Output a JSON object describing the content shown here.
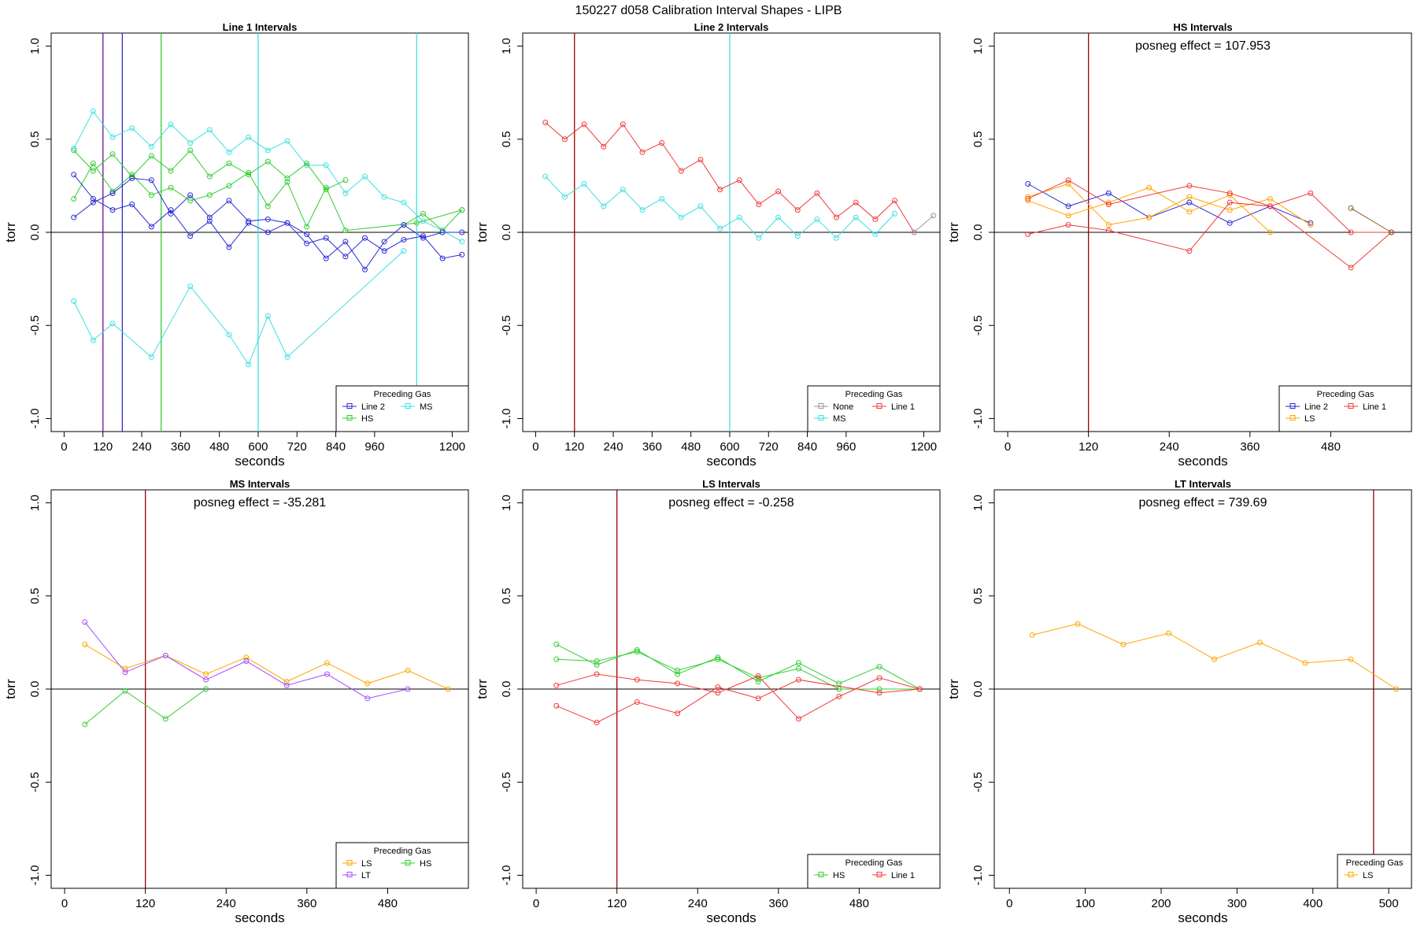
{
  "figure": {
    "title": "150227   d058   Calibration Interval Shapes - LIPB"
  },
  "chart_data": [
    {
      "type": "line",
      "title": "Line 1 Intervals",
      "xlabel": "seconds",
      "ylabel": "torr",
      "xlim": [
        -40,
        1250
      ],
      "ylim": [
        -1.07,
        1.07
      ],
      "xticks": [
        0,
        120,
        240,
        360,
        480,
        600,
        720,
        840,
        960,
        1200
      ],
      "yticks": [
        -1.0,
        -0.5,
        0.0,
        0.5,
        1.0
      ],
      "ytick_labels": [
        "-1.0",
        "-0.5",
        "0.0",
        "0.5",
        "1.0"
      ],
      "hline": 0,
      "vlines": [
        {
          "x": 120,
          "color": "#9a0000"
        },
        {
          "x": 120,
          "color": "#7e2bb5"
        },
        {
          "x": 180,
          "color": "#2a2ad8"
        },
        {
          "x": 300,
          "color": "#33cc33"
        },
        {
          "x": 600,
          "color": "#3fe0e0"
        },
        {
          "x": 1090,
          "color": "#3fe0e0"
        }
      ],
      "annotation": "",
      "legend": {
        "title": "Preceding Gas",
        "placement": "bottom-right",
        "columns": 2,
        "entries": [
          {
            "label": "Line 2",
            "color": "#2a2ad8"
          },
          {
            "label": "MS",
            "color": "#3fe0e0"
          },
          {
            "label": "HS",
            "color": "#33cc33"
          }
        ]
      },
      "series": [
        {
          "color": "#3fe0e0",
          "x": [
            30,
            90,
            150,
            210,
            270,
            330,
            390,
            450,
            510,
            570,
            630,
            690,
            750,
            810,
            870,
            930,
            990,
            1050,
            1110,
            1170,
            1230
          ],
          "y": [
            0.45,
            0.65,
            0.51,
            0.56,
            0.46,
            0.58,
            0.48,
            0.55,
            0.43,
            0.51,
            0.44,
            0.49,
            0.36,
            0.36,
            0.21,
            0.3,
            0.19,
            0.16,
            0.06,
            0.01,
            -0.05
          ]
        },
        {
          "color": "#3fe0e0",
          "x": [
            30,
            90,
            150,
            270,
            390,
            510,
            570,
            630,
            690,
            1050
          ],
          "y": [
            -0.37,
            -0.58,
            -0.49,
            -0.67,
            -0.29,
            -0.55,
            -0.71,
            -0.45,
            -0.67,
            -0.1
          ]
        },
        {
          "color": "#33cc33",
          "x": [
            30,
            90,
            150,
            210,
            270,
            330,
            390,
            450,
            510,
            570,
            630,
            690,
            750,
            810,
            870
          ],
          "y": [
            0.44,
            0.33,
            0.42,
            0.3,
            0.41,
            0.33,
            0.44,
            0.3,
            0.37,
            0.31,
            0.38,
            0.29,
            0.37,
            0.23,
            0.28
          ]
        },
        {
          "color": "#33cc33",
          "x": [
            30,
            90,
            150,
            210,
            270,
            330,
            390,
            450,
            510,
            570,
            630,
            690,
            750,
            810,
            870,
            1090,
            1230
          ],
          "y": [
            0.18,
            0.37,
            0.22,
            0.31,
            0.2,
            0.24,
            0.17,
            0.2,
            0.25,
            0.32,
            0.14,
            0.27,
            0.03,
            0.24,
            0.01,
            0.05,
            0.12
          ]
        },
        {
          "color": "#33cc33",
          "x": [
            1050,
            1110,
            1170,
            1230
          ],
          "y": [
            0.04,
            0.1,
            0.01,
            0.12
          ]
        },
        {
          "color": "#2a2ad8",
          "x": [
            30,
            90,
            150,
            210,
            270,
            330,
            390,
            450,
            510,
            570,
            630,
            690,
            750,
            810,
            870,
            930,
            990,
            1050,
            1110,
            1170,
            1230
          ],
          "y": [
            0.31,
            0.18,
            0.12,
            0.15,
            0.03,
            0.12,
            -0.02,
            0.06,
            -0.08,
            0.05,
            0.0,
            0.05,
            -0.06,
            -0.03,
            -0.13,
            -0.03,
            -0.1,
            -0.04,
            -0.02,
            -0.14,
            -0.12
          ]
        },
        {
          "color": "#2a2ad8",
          "x": [
            30,
            90,
            150,
            210,
            270,
            330,
            390,
            450,
            510,
            570,
            630,
            690,
            750,
            810,
            870,
            930,
            990,
            1050,
            1110,
            1170,
            1230
          ],
          "y": [
            0.08,
            0.16,
            0.21,
            0.29,
            0.28,
            0.1,
            0.2,
            0.08,
            0.17,
            0.06,
            0.07,
            0.05,
            -0.01,
            -0.14,
            -0.05,
            -0.2,
            -0.05,
            0.04,
            -0.03,
            0.0,
            0.0
          ]
        }
      ]
    },
    {
      "type": "line",
      "title": "Line 2 Intervals",
      "xlabel": "seconds",
      "ylabel": "torr",
      "xlim": [
        -40,
        1250
      ],
      "ylim": [
        -1.07,
        1.07
      ],
      "xticks": [
        0,
        120,
        240,
        360,
        480,
        600,
        720,
        840,
        960,
        1200
      ],
      "yticks": [
        -1.0,
        -0.5,
        0.0,
        0.5,
        1.0
      ],
      "ytick_labels": [
        "-1.0",
        "-0.5",
        "0.0",
        "0.5",
        "1.0"
      ],
      "hline": 0,
      "vlines": [
        {
          "x": 120,
          "color": "#9a0000"
        },
        {
          "x": 600,
          "color": "#3fe0e0"
        }
      ],
      "annotation": "",
      "legend": {
        "title": "Preceding Gas",
        "placement": "bottom-right",
        "columns": 2,
        "entries": [
          {
            "label": "None",
            "color": "#999999"
          },
          {
            "label": "Line 1",
            "color": "#f03a3a"
          },
          {
            "label": "MS",
            "color": "#3fe0e0"
          }
        ]
      },
      "series": [
        {
          "color": "#f03a3a",
          "x": [
            30,
            90,
            150,
            210,
            270,
            330,
            390,
            450,
            510,
            570,
            630,
            690,
            750,
            810,
            870,
            930,
            990,
            1050,
            1110,
            1170
          ],
          "y": [
            0.59,
            0.5,
            0.58,
            0.46,
            0.58,
            0.43,
            0.48,
            0.33,
            0.39,
            0.23,
            0.28,
            0.15,
            0.22,
            0.12,
            0.21,
            0.08,
            0.16,
            0.07,
            0.17,
            0.0
          ]
        },
        {
          "color": "#3fe0e0",
          "x": [
            30,
            90,
            150,
            210,
            270,
            330,
            390,
            450,
            510,
            570,
            630,
            690,
            750,
            810,
            870,
            930,
            990,
            1050,
            1110
          ],
          "y": [
            0.3,
            0.19,
            0.26,
            0.14,
            0.23,
            0.12,
            0.18,
            0.08,
            0.14,
            0.02,
            0.08,
            -0.03,
            0.08,
            -0.02,
            0.07,
            -0.03,
            0.08,
            -0.01,
            0.1
          ]
        },
        {
          "color": "#999999",
          "x": [
            1170,
            1230
          ],
          "y": [
            0.0,
            0.09
          ]
        }
      ]
    },
    {
      "type": "line",
      "title": "HS Intervals",
      "xlabel": "seconds",
      "ylabel": "torr",
      "xlim": [
        -20,
        600
      ],
      "ylim": [
        -1.07,
        1.07
      ],
      "xticks": [
        0,
        120,
        240,
        360,
        480
      ],
      "yticks": [
        -1.0,
        -0.5,
        0.0,
        0.5,
        1.0
      ],
      "ytick_labels": [
        "-1.0",
        "-0.5",
        "0.0",
        "0.5",
        "1.0"
      ],
      "hline": 0,
      "vlines": [
        {
          "x": 120,
          "color": "#9a0000"
        }
      ],
      "annotation": "posneg effect = 107.953",
      "legend": {
        "title": "Preceding Gas",
        "placement": "bottom-right",
        "columns": 2,
        "entries": [
          {
            "label": "Line 2",
            "color": "#2a2ad8"
          },
          {
            "label": "Line 1",
            "color": "#f03a3a"
          },
          {
            "label": "LS",
            "color": "#ffa500"
          }
        ]
      },
      "series": [
        {
          "color": "#2a2ad8",
          "x": [
            30,
            90,
            150,
            210,
            270,
            330,
            390,
            450
          ],
          "y": [
            0.26,
            0.14,
            0.21,
            0.08,
            0.16,
            0.05,
            0.14,
            0.05
          ]
        },
        {
          "color": "#ffa500",
          "x": [
            30,
            90,
            150,
            210,
            270,
            330,
            390
          ],
          "y": [
            0.17,
            0.09,
            0.16,
            0.24,
            0.11,
            0.2,
            0.0
          ]
        },
        {
          "color": "#ffa500",
          "x": [
            30,
            90,
            150,
            210,
            270,
            330,
            390,
            450
          ],
          "y": [
            0.19,
            0.26,
            0.04,
            0.08,
            0.19,
            0.12,
            0.18,
            0.04
          ]
        },
        {
          "color": "#f03a3a",
          "x": [
            30,
            90,
            150,
            270,
            330,
            390,
            450,
            510,
            570
          ],
          "y": [
            0.18,
            0.28,
            0.15,
            0.25,
            0.21,
            0.14,
            0.21,
            0.0,
            0.0
          ]
        },
        {
          "color": "#f03a3a",
          "x": [
            30,
            90,
            150,
            270,
            330,
            390,
            510,
            570
          ],
          "y": [
            -0.01,
            0.04,
            0.01,
            -0.1,
            0.16,
            0.14,
            -0.19,
            0.0
          ]
        },
        {
          "color": "#8a5a20",
          "x": [
            510,
            570
          ],
          "y": [
            0.13,
            0.0
          ]
        }
      ]
    },
    {
      "type": "line",
      "title": "MS Intervals",
      "xlabel": "seconds",
      "ylabel": "torr",
      "xlim": [
        -20,
        600
      ],
      "ylim": [
        -1.07,
        1.07
      ],
      "xticks": [
        0,
        120,
        240,
        360,
        480
      ],
      "yticks": [
        -1.0,
        -0.5,
        0.0,
        0.5,
        1.0
      ],
      "ytick_labels": [
        "-1.0",
        "-0.5",
        "0.0",
        "0.5",
        "1.0"
      ],
      "hline": 0,
      "vlines": [
        {
          "x": 120,
          "color": "#9a0000"
        }
      ],
      "annotation": "posneg effect = -35.281",
      "legend": {
        "title": "Preceding Gas",
        "placement": "bottom-right",
        "columns": 2,
        "entries": [
          {
            "label": "LS",
            "color": "#ffa500"
          },
          {
            "label": "HS",
            "color": "#33cc33"
          },
          {
            "label": "LT",
            "color": "#a64dff"
          }
        ]
      },
      "series": [
        {
          "color": "#ffa500",
          "x": [
            30,
            90,
            150,
            210,
            270,
            330,
            390,
            450,
            510,
            570
          ],
          "y": [
            0.24,
            0.11,
            0.18,
            0.08,
            0.17,
            0.04,
            0.14,
            0.03,
            0.1,
            0.0
          ]
        },
        {
          "color": "#a64dff",
          "x": [
            30,
            90,
            150,
            210,
            270,
            330,
            390,
            450,
            510
          ],
          "y": [
            0.36,
            0.09,
            0.18,
            0.05,
            0.15,
            0.02,
            0.08,
            -0.05,
            0.0
          ]
        },
        {
          "color": "#33cc33",
          "x": [
            30,
            90,
            150,
            210
          ],
          "y": [
            -0.19,
            -0.01,
            -0.16,
            0.0
          ]
        }
      ]
    },
    {
      "type": "line",
      "title": "LS Intervals",
      "xlabel": "seconds",
      "ylabel": "torr",
      "xlim": [
        -20,
        600
      ],
      "ylim": [
        -1.07,
        1.07
      ],
      "xticks": [
        0,
        120,
        240,
        360,
        480
      ],
      "yticks": [
        -1.0,
        -0.5,
        0.0,
        0.5,
        1.0
      ],
      "ytick_labels": [
        "-1.0",
        "-0.5",
        "0.0",
        "0.5",
        "1.0"
      ],
      "hline": 0,
      "vlines": [
        {
          "x": 120,
          "color": "#9a0000"
        }
      ],
      "annotation": "posneg effect = -0.258",
      "legend": {
        "title": "Preceding Gas",
        "placement": "bottom-right",
        "columns": 2,
        "entries": [
          {
            "label": "HS",
            "color": "#33cc33"
          },
          {
            "label": "Line 1",
            "color": "#f03a3a"
          }
        ]
      },
      "series": [
        {
          "color": "#33cc33",
          "x": [
            30,
            90,
            150,
            210,
            270,
            330,
            390,
            450,
            510,
            570
          ],
          "y": [
            0.24,
            0.13,
            0.21,
            0.08,
            0.17,
            0.04,
            0.14,
            0.03,
            0.12,
            0.0
          ]
        },
        {
          "color": "#33cc33",
          "x": [
            30,
            90,
            150,
            210,
            270,
            330,
            390,
            450,
            510,
            570
          ],
          "y": [
            0.16,
            0.15,
            0.2,
            0.1,
            0.16,
            0.06,
            0.11,
            0.0,
            0.0,
            0.0
          ]
        },
        {
          "color": "#f03a3a",
          "x": [
            30,
            90,
            150,
            210,
            270,
            330,
            390,
            450,
            510,
            570
          ],
          "y": [
            0.02,
            0.08,
            0.05,
            0.03,
            -0.02,
            0.07,
            -0.16,
            -0.04,
            0.06,
            0.0
          ]
        },
        {
          "color": "#f03a3a",
          "x": [
            30,
            90,
            150,
            210,
            270,
            330,
            390,
            510,
            570
          ],
          "y": [
            -0.09,
            -0.18,
            -0.07,
            -0.13,
            0.01,
            -0.05,
            0.05,
            -0.02,
            0.0
          ]
        }
      ]
    },
    {
      "type": "line",
      "title": "LT Intervals",
      "xlabel": "seconds",
      "ylabel": "torr",
      "xlim": [
        -20,
        530
      ],
      "ylim": [
        -1.07,
        1.07
      ],
      "xticks": [
        0,
        100,
        200,
        300,
        400,
        500
      ],
      "yticks": [
        -1.0,
        -0.5,
        0.0,
        0.5,
        1.0
      ],
      "ytick_labels": [
        "-1.0",
        "-0.5",
        "0.0",
        "0.5",
        "1.0"
      ],
      "hline": 0,
      "vlines": [
        {
          "x": 480,
          "color": "#9a0000"
        }
      ],
      "annotation": "posneg effect = 739.69",
      "legend": {
        "title": "Preceding Gas",
        "placement": "bottom-right",
        "columns": 1,
        "entries": [
          {
            "label": "LS",
            "color": "#ffa500"
          }
        ]
      },
      "series": [
        {
          "color": "#ffa500",
          "x": [
            30,
            90,
            150,
            210,
            270,
            330,
            390,
            450,
            510
          ],
          "y": [
            0.29,
            0.35,
            0.24,
            0.3,
            0.16,
            0.25,
            0.14,
            0.16,
            0.0
          ]
        }
      ]
    }
  ]
}
